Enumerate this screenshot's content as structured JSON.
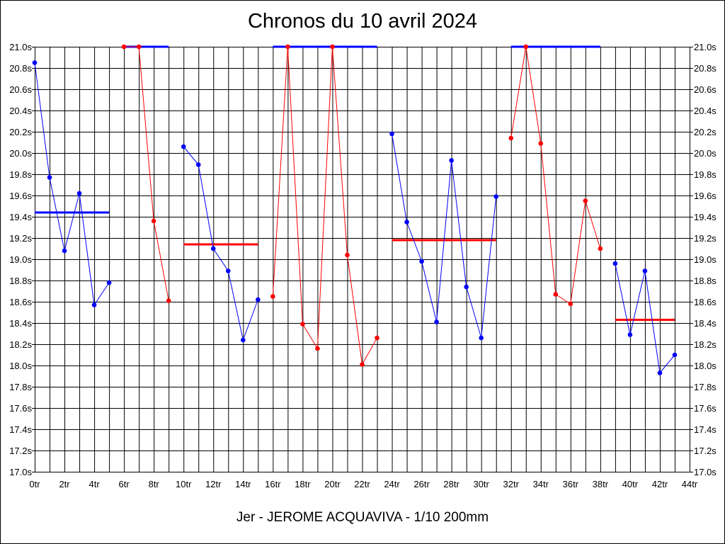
{
  "chart_data": {
    "type": "line",
    "title": "Chronos du 10 avril 2024",
    "footer": "Jer - JEROME ACQUAVIVA - 1/10 200mm",
    "xlim": [
      0,
      44
    ],
    "ylim": [
      17.0,
      21.0
    ],
    "x_tick_labels": [
      "0tr",
      "2tr",
      "4tr",
      "6tr",
      "8tr",
      "10tr",
      "12tr",
      "14tr",
      "16tr",
      "18tr",
      "20tr",
      "22tr",
      "24tr",
      "26tr",
      "28tr",
      "30tr",
      "32tr",
      "34tr",
      "36tr",
      "38tr",
      "40tr",
      "42tr",
      "44tr"
    ],
    "y_tick_labels": [
      "17.0s",
      "17.2s",
      "17.4s",
      "17.6s",
      "17.8s",
      "18.0s",
      "18.2s",
      "18.4s",
      "18.6s",
      "18.8s",
      "19.0s",
      "19.2s",
      "19.4s",
      "19.6s",
      "19.8s",
      "20.0s",
      "20.2s",
      "20.4s",
      "20.6s",
      "20.8s",
      "21.0s"
    ],
    "grid": true,
    "series": [
      {
        "color": "#0000ff",
        "points": [
          [
            0,
            20.85
          ],
          [
            1,
            19.77
          ],
          [
            2,
            19.08
          ],
          [
            3,
            19.62
          ],
          [
            4,
            18.57
          ],
          [
            5,
            18.78
          ]
        ],
        "mean": 19.44,
        "mean_range": [
          0,
          5
        ]
      },
      {
        "color": "#ff0000",
        "points": [
          [
            6,
            21.0
          ],
          [
            7,
            21.0
          ],
          [
            8,
            19.36
          ],
          [
            9,
            18.61
          ]
        ],
        "mean": 21.0,
        "mean_range": [
          6,
          9
        ],
        "mean_color": "#0000ff"
      },
      {
        "color": "#0000ff",
        "points": [
          [
            10,
            20.06
          ],
          [
            11,
            19.89
          ],
          [
            12,
            19.1
          ],
          [
            13,
            18.89
          ],
          [
            14,
            18.24
          ],
          [
            15,
            18.62
          ]
        ],
        "mean": 19.14,
        "mean_range": [
          10,
          15
        ],
        "mean_color": "#ff0000"
      },
      {
        "color": "#ff0000",
        "points": [
          [
            16,
            18.65
          ],
          [
            17,
            21.0
          ],
          [
            18,
            18.39
          ],
          [
            19,
            18.16
          ],
          [
            20,
            21.0
          ],
          [
            21,
            19.04
          ],
          [
            22,
            18.01
          ],
          [
            23,
            18.26
          ]
        ],
        "mean": 21.0,
        "mean_range": [
          16,
          23
        ],
        "mean_color": "#0000ff"
      },
      {
        "color": "#0000ff",
        "points": [
          [
            24,
            20.18
          ],
          [
            25,
            19.35
          ],
          [
            26,
            18.98
          ],
          [
            27,
            18.41
          ],
          [
            28,
            19.93
          ],
          [
            29,
            18.74
          ],
          [
            30,
            18.26
          ],
          [
            31,
            19.59
          ]
        ],
        "mean": 19.18,
        "mean_range": [
          24,
          31
        ],
        "mean_color": "#ff0000"
      },
      {
        "color": "#ff0000",
        "points": [
          [
            32,
            20.14
          ],
          [
            33,
            21.0
          ],
          [
            34,
            20.09
          ],
          [
            35,
            18.67
          ],
          [
            36,
            18.58
          ],
          [
            37,
            19.55
          ],
          [
            38,
            19.1
          ]
        ],
        "mean": 21.0,
        "mean_range": [
          32,
          38
        ],
        "mean_color": "#0000ff"
      },
      {
        "color": "#0000ff",
        "points": [
          [
            39,
            18.96
          ],
          [
            40,
            18.29
          ],
          [
            41,
            18.89
          ],
          [
            42,
            17.93
          ],
          [
            43,
            18.1
          ]
        ],
        "mean": 18.43,
        "mean_range": [
          39,
          43
        ],
        "mean_color": "#ff0000"
      }
    ]
  }
}
